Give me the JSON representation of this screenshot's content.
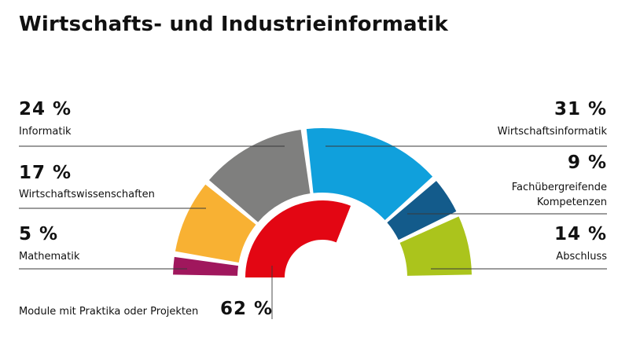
{
  "title": "Wirtschafts- und Industrieinformatik",
  "chart_data": {
    "type": "pie",
    "title": "Wirtschafts- und Industrieinformatik",
    "unit": "%",
    "outer_ring": [
      {
        "label": "Mathematik",
        "value": 5,
        "value_text": "5 %",
        "color": "#a0175d"
      },
      {
        "label": "Wirtschaftswissenschaften",
        "value": 17,
        "value_text": "17 %",
        "color": "#f8b133"
      },
      {
        "label": "Informatik",
        "value": 24,
        "value_text": "24 %",
        "color": "#7f7f7e"
      },
      {
        "label": "Wirtschaftsinformatik",
        "value": 31,
        "value_text": "31 %",
        "color": "#10a0dc"
      },
      {
        "label": "Fachübergreifende Kompetenzen",
        "value": 9,
        "value_text": "9 %",
        "color": "#135b8b"
      },
      {
        "label": "Abschluss",
        "value": 14,
        "value_text": "14 %",
        "color": "#abc41c"
      }
    ],
    "inner_ring": [
      {
        "label": "Module mit Praktika oder Projekten",
        "value": 62,
        "value_text": "62 %",
        "color": "#e30613"
      }
    ]
  }
}
